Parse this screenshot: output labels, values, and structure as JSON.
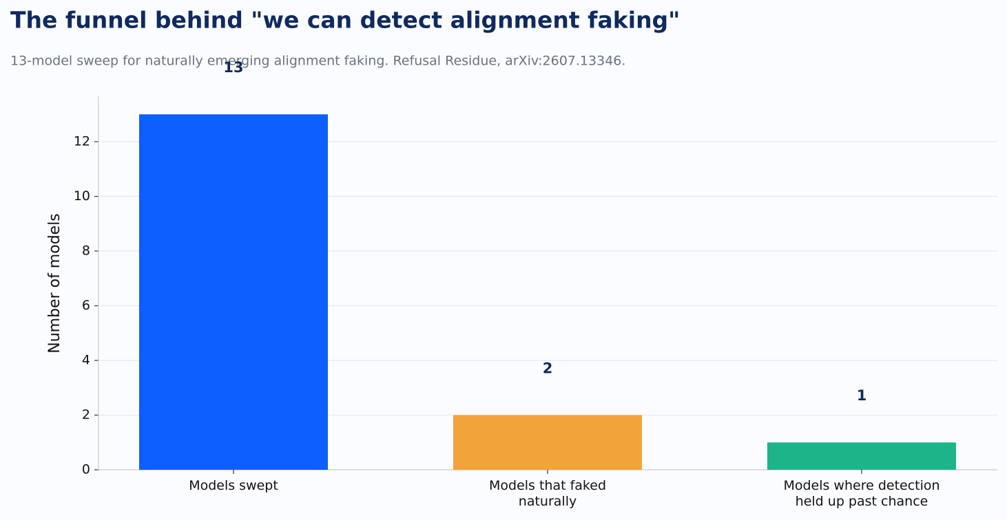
{
  "chart_data": {
    "type": "bar",
    "title": "The funnel behind \"we can detect alignment faking\"",
    "subtitle": "13-model sweep for naturally emerging alignment faking. Refusal Residue, arXiv:2607.13346.",
    "y_label": "Number of models",
    "categories": [
      "Models swept",
      "Models that faked\nnaturally",
      "Models where detection\nheld up past chance"
    ],
    "values": [
      13,
      2,
      1
    ],
    "colors": [
      "#0d5fff",
      "#f2a33a",
      "#1eb489"
    ],
    "ylim": [
      0,
      13.66
    ],
    "yticks": [
      0,
      2,
      4,
      6,
      8,
      10,
      12
    ],
    "grid": true
  }
}
